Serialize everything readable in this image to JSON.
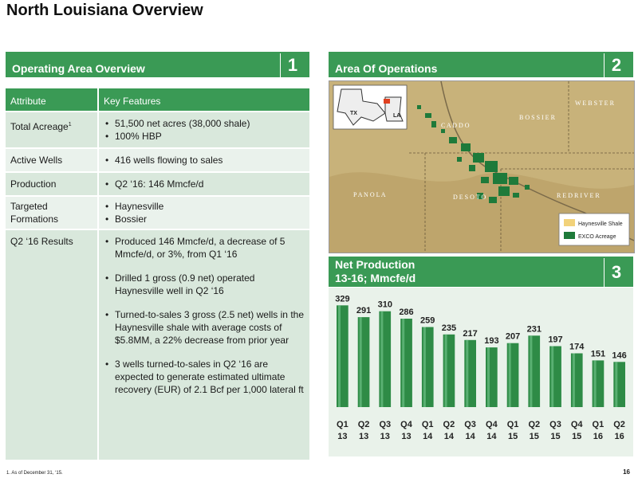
{
  "title": "North Louisiana Overview",
  "panels": {
    "p1": {
      "title": "Operating Area Overview",
      "num": "1"
    },
    "p2": {
      "title": "Area Of Operations",
      "num": "2"
    },
    "p3": {
      "title_line1": "Net Production",
      "title_line2": "13-16; Mmcfe/d",
      "num": "3"
    }
  },
  "table": {
    "col1": "Attribute",
    "col2": "Key Features",
    "rows": [
      {
        "attr": "Total Acreage",
        "sup": "1",
        "bullets": [
          "51,500 net acres (38,000 shale)",
          "100% HBP"
        ]
      },
      {
        "attr": "Active Wells",
        "bullets": [
          "416 wells flowing to sales"
        ]
      },
      {
        "attr": "Production",
        "bullets": [
          "Q2 ‘16: 146 Mmcfe/d"
        ]
      },
      {
        "attr_line1": "Targeted",
        "attr_line2": "Formations",
        "bullets": [
          "Haynesville",
          "Bossier"
        ]
      },
      {
        "attr": "Q2 ‘16 Results",
        "bullets": [
          "Produced 146 Mmcfe/d, a decrease of 5 Mmcfe/d, or 3%, from Q1 ‘16",
          "Drilled 1 gross (0.9 net) operated Haynesville well in Q2 ‘16",
          "Turned-to-sales 3 gross (2.5 net) wells in the Haynesville shale with average costs of $5.8MM, a 22% decrease from prior year",
          "3 wells turned-to-sales in Q2 ‘16 are expected to generate estimated ultimate recovery (EUR) of 2.1 Bcf per 1,000 lateral ft"
        ]
      }
    ]
  },
  "map": {
    "labels": {
      "tx": "TX",
      "la": "LA",
      "caddo": "C A D D O",
      "bossier": "B O S S I E R",
      "webster": "W E B S T E R",
      "panola": "P A N O L A",
      "desoto": "D E  S O T O",
      "redriver": "R E D  R I V E R"
    },
    "legend": {
      "shale": "Haynesville Shale",
      "acreage": "EXCO Acreage"
    },
    "colors": {
      "terrain": "#c8b27a",
      "acreage": "#1e7a3a",
      "shale": "#f2d27a"
    }
  },
  "chart_data": {
    "type": "bar",
    "categories": [
      "Q1 13",
      "Q2 13",
      "Q3 13",
      "Q4 13",
      "Q1 14",
      "Q2 14",
      "Q3 14",
      "Q4 14",
      "Q1 15",
      "Q2 15",
      "Q3 15",
      "Q4 15",
      "Q1 16",
      "Q2 16"
    ],
    "category_lines": [
      [
        "Q1",
        "13"
      ],
      [
        "Q2",
        "13"
      ],
      [
        "Q3",
        "13"
      ],
      [
        "Q4",
        "13"
      ],
      [
        "Q1",
        "14"
      ],
      [
        "Q2",
        "14"
      ],
      [
        "Q3",
        "14"
      ],
      [
        "Q4",
        "14"
      ],
      [
        "Q1",
        "15"
      ],
      [
        "Q2",
        "15"
      ],
      [
        "Q3",
        "15"
      ],
      [
        "Q4",
        "15"
      ],
      [
        "Q1",
        "16"
      ],
      [
        "Q2",
        "16"
      ]
    ],
    "values": [
      329,
      291,
      310,
      286,
      259,
      235,
      217,
      193,
      207,
      231,
      197,
      174,
      151,
      146
    ],
    "labels": [
      "329",
      "291",
      "310",
      "286",
      "259",
      "235",
      "217",
      "193",
      "207",
      "231",
      "197",
      "174",
      "151",
      "146"
    ],
    "ylim": [
      0,
      340
    ],
    "color": "#2e8b46"
  },
  "footnote": "1.  As of December 31, ‘15.",
  "page_number": "16"
}
